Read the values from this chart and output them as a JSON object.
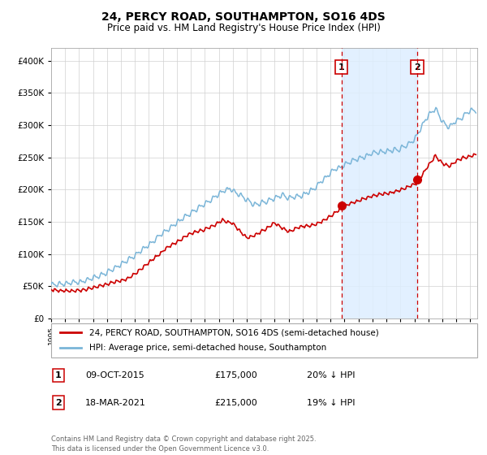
{
  "title": "24, PERCY ROAD, SOUTHAMPTON, SO16 4DS",
  "subtitle": "Price paid vs. HM Land Registry's House Price Index (HPI)",
  "legend_line1": "24, PERCY ROAD, SOUTHAMPTON, SO16 4DS (semi-detached house)",
  "legend_line2": "HPI: Average price, semi-detached house, Southampton",
  "transaction1_date": "09-OCT-2015",
  "transaction1_price": "£175,000",
  "transaction1_hpi": "20% ↓ HPI",
  "transaction1_year": 2015.77,
  "transaction1_value": 175000,
  "transaction2_date": "18-MAR-2021",
  "transaction2_price": "£215,000",
  "transaction2_hpi": "19% ↓ HPI",
  "transaction2_year": 2021.21,
  "transaction2_value": 215000,
  "footer": "Contains HM Land Registry data © Crown copyright and database right 2025.\nThis data is licensed under the Open Government Licence v3.0.",
  "hpi_color": "#7ab5d8",
  "price_color": "#cc0000",
  "vline_color": "#cc0000",
  "shade_color": "#ddeeff",
  "background_color": "#ffffff",
  "ylim": [
    0,
    420000
  ],
  "xlim_start": 1995,
  "xlim_end": 2025.5
}
